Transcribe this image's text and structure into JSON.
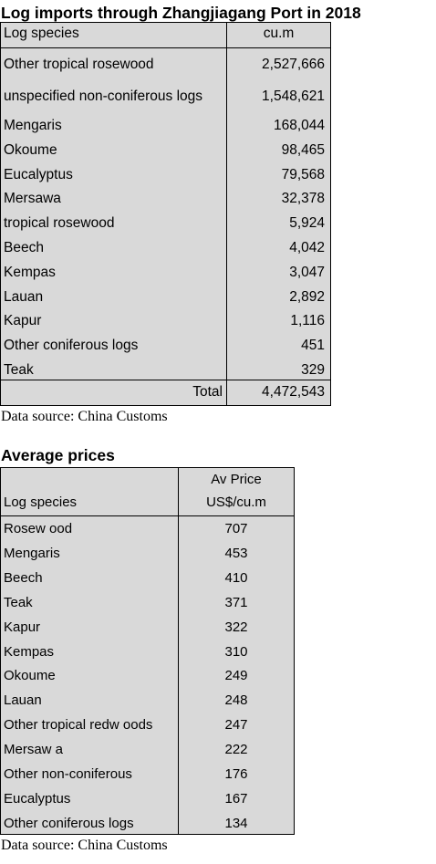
{
  "imports": {
    "title": "Log imports through Zhangjiagang Port in 2018",
    "col_species": "Log species",
    "col_unit": "cu.m",
    "rows": [
      {
        "species": "Other tropical rosewood",
        "value": "2,527,666"
      },
      {
        "species": "unspecified non-coniferous logs",
        "value": "1,548,621"
      },
      {
        "species": "Mengaris",
        "value": "168,044"
      },
      {
        "species": "Okoume",
        "value": "98,465"
      },
      {
        "species": "Eucalyptus",
        "value": "79,568"
      },
      {
        "species": "Mersawa",
        "value": "32,378"
      },
      {
        "species": "tropical rosewood",
        "value": "5,924"
      },
      {
        "species": "Beech",
        "value": "4,042"
      },
      {
        "species": "Kempas",
        "value": "3,047"
      },
      {
        "species": "Lauan",
        "value": "2,892"
      },
      {
        "species": "Kapur",
        "value": "1,116"
      },
      {
        "species": "Other coniferous logs",
        "value": "451"
      },
      {
        "species": "Teak",
        "value": "329"
      }
    ],
    "total_label": "Total",
    "total_value": "4,472,543",
    "source": "Data source: China Customs"
  },
  "prices": {
    "title": "Average prices",
    "col_species": "Log species",
    "col_price_line1": "Av Price",
    "col_price_line2": "US$/cu.m",
    "rows": [
      {
        "species": "Rosew ood",
        "value": "707"
      },
      {
        "species": "Mengaris",
        "value": "453"
      },
      {
        "species": "Beech",
        "value": "410"
      },
      {
        "species": "Teak",
        "value": "371"
      },
      {
        "species": "Kapur",
        "value": "322"
      },
      {
        "species": "Kempas",
        "value": "310"
      },
      {
        "species": "Okoume",
        "value": "249"
      },
      {
        "species": "Lauan",
        "value": "248"
      },
      {
        "species": "Other tropical redw oods",
        "value": "247"
      },
      {
        "species": "Mersaw a",
        "value": "222"
      },
      {
        "species": "Other non-coniferous",
        "value": "176"
      },
      {
        "species": "Eucalyptus",
        "value": "167"
      },
      {
        "species": "Other coniferous logs",
        "value": "134"
      }
    ],
    "source": "Data source: China Customs"
  }
}
